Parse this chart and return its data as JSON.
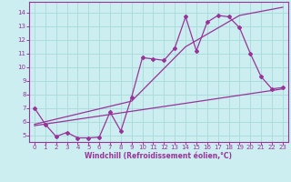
{
  "xlabel": "Windchill (Refroidissement éolien,°C)",
  "bg_color": "#cceef0",
  "grid_color": "#aadddd",
  "line_color": "#993399",
  "xlim": [
    -0.5,
    23.5
  ],
  "ylim": [
    4.5,
    14.8
  ],
  "xticks": [
    0,
    1,
    2,
    3,
    4,
    5,
    6,
    7,
    8,
    9,
    10,
    11,
    12,
    13,
    14,
    15,
    16,
    17,
    18,
    19,
    20,
    21,
    22,
    23
  ],
  "yticks": [
    5,
    6,
    7,
    8,
    9,
    10,
    11,
    12,
    13,
    14
  ],
  "main_x": [
    0,
    1,
    2,
    3,
    4,
    5,
    6,
    7,
    8,
    9,
    10,
    11,
    12,
    13,
    14,
    15,
    16,
    17,
    18,
    19,
    20,
    21,
    22,
    23
  ],
  "main_y": [
    7.0,
    5.8,
    4.9,
    5.2,
    4.8,
    4.8,
    4.85,
    6.7,
    5.3,
    7.8,
    10.7,
    10.6,
    10.5,
    11.4,
    13.7,
    11.2,
    13.3,
    13.8,
    13.7,
    12.9,
    11.0,
    9.3,
    8.4,
    8.5
  ],
  "trend1_x": [
    0,
    23
  ],
  "trend1_y": [
    5.7,
    8.4
  ],
  "trend2_x": [
    0,
    9,
    14,
    19,
    23
  ],
  "trend2_y": [
    5.8,
    7.5,
    11.5,
    13.8,
    14.4
  ]
}
